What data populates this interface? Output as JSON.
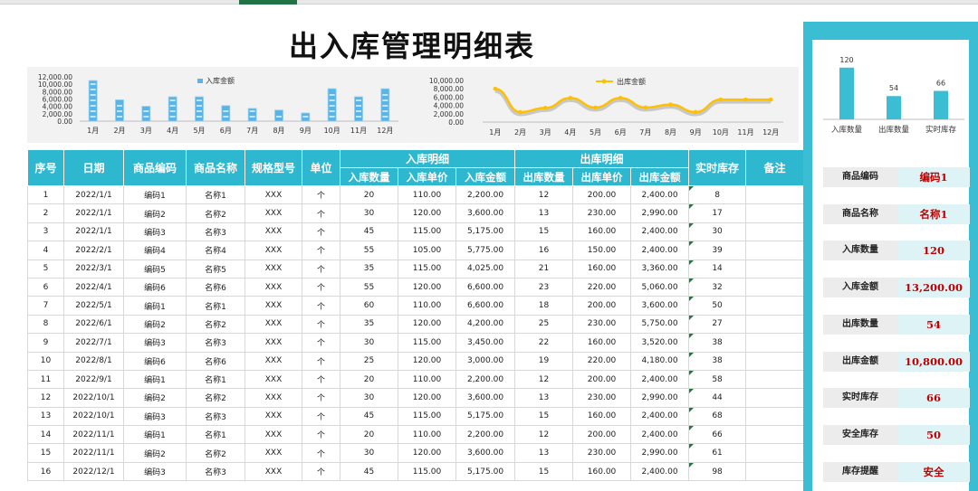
{
  "title": "出入库管理明细表",
  "colors": {
    "header_bg": "#2eb8d0",
    "panel_bg": "#3bbdd4",
    "bar_in": "#5ab4e5",
    "line_out": "#ffc000",
    "value_red": "#c00000"
  },
  "chart_in": {
    "type": "bar",
    "legend": "入库金额",
    "categories": [
      "1月",
      "2月",
      "3月",
      "4月",
      "5月",
      "6月",
      "7月",
      "8月",
      "9月",
      "10月",
      "11月",
      "12月"
    ],
    "yticks": [
      "12,000.00",
      "10,000.00",
      "8,000.00",
      "6,000.00",
      "4,000.00",
      "2,000.00",
      "0.00"
    ],
    "ylim": [
      0,
      12000
    ],
    "values": [
      11000,
      5775,
      4025,
      6600,
      6600,
      4200,
      3450,
      3000,
      2200,
      8800,
      6600,
      8775
    ]
  },
  "chart_out": {
    "type": "line",
    "legend": "出库金额",
    "categories": [
      "1月",
      "2月",
      "3月",
      "4月",
      "5月",
      "6月",
      "7月",
      "8月",
      "9月",
      "10月",
      "11月",
      "12月"
    ],
    "yticks": [
      "10,000.00",
      "8,000.00",
      "6,000.00",
      "4,000.00",
      "2,000.00",
      "0.00"
    ],
    "ylim": [
      0,
      10000
    ],
    "values": [
      8000,
      2400,
      3400,
      5800,
      3500,
      5800,
      3500,
      4200,
      2400,
      5400,
      5400,
      5400
    ]
  },
  "chart_kpi": {
    "type": "bar",
    "categories": [
      "入库数量",
      "出库数量",
      "实时库存"
    ],
    "values": [
      120,
      54,
      66
    ],
    "labels": [
      "120",
      "54",
      "66"
    ],
    "ylim": [
      0,
      130
    ]
  },
  "table": {
    "headers": {
      "seq": "序号",
      "date": "日期",
      "code": "商品编码",
      "name": "商品名称",
      "spec": "规格型号",
      "unit": "单位",
      "in_group": "入库明细",
      "in_qty": "入库数量",
      "in_price": "入库单价",
      "in_amt": "入库金额",
      "out_group": "出库明细",
      "out_qty": "出库数量",
      "out_price": "出库单价",
      "out_amt": "出库金额",
      "stock": "实时库存",
      "note": "备注"
    },
    "rows": [
      [
        "1",
        "2022/1/1",
        "编码1",
        "名称1",
        "XXX",
        "个",
        "20",
        "110.00",
        "2,200.00",
        "12",
        "200.00",
        "2,400.00",
        "8",
        ""
      ],
      [
        "2",
        "2022/1/1",
        "编码2",
        "名称2",
        "XXX",
        "个",
        "30",
        "120.00",
        "3,600.00",
        "13",
        "230.00",
        "2,990.00",
        "17",
        ""
      ],
      [
        "3",
        "2022/1/1",
        "编码3",
        "名称3",
        "XXX",
        "个",
        "45",
        "115.00",
        "5,175.00",
        "15",
        "160.00",
        "2,400.00",
        "30",
        ""
      ],
      [
        "4",
        "2022/2/1",
        "编码4",
        "名称4",
        "XXX",
        "个",
        "55",
        "105.00",
        "5,775.00",
        "16",
        "150.00",
        "2,400.00",
        "39",
        ""
      ],
      [
        "5",
        "2022/3/1",
        "编码5",
        "名称5",
        "XXX",
        "个",
        "35",
        "115.00",
        "4,025.00",
        "21",
        "160.00",
        "3,360.00",
        "14",
        ""
      ],
      [
        "6",
        "2022/4/1",
        "编码6",
        "名称6",
        "XXX",
        "个",
        "55",
        "120.00",
        "6,600.00",
        "23",
        "220.00",
        "5,060.00",
        "32",
        ""
      ],
      [
        "7",
        "2022/5/1",
        "编码1",
        "名称1",
        "XXX",
        "个",
        "60",
        "110.00",
        "6,600.00",
        "18",
        "200.00",
        "3,600.00",
        "50",
        ""
      ],
      [
        "8",
        "2022/6/1",
        "编码2",
        "名称2",
        "XXX",
        "个",
        "35",
        "120.00",
        "4,200.00",
        "25",
        "230.00",
        "5,750.00",
        "27",
        ""
      ],
      [
        "9",
        "2022/7/1",
        "编码3",
        "名称3",
        "XXX",
        "个",
        "30",
        "115.00",
        "3,450.00",
        "22",
        "160.00",
        "3,520.00",
        "38",
        ""
      ],
      [
        "10",
        "2022/8/1",
        "编码6",
        "名称6",
        "XXX",
        "个",
        "25",
        "120.00",
        "3,000.00",
        "19",
        "220.00",
        "4,180.00",
        "38",
        ""
      ],
      [
        "11",
        "2022/9/1",
        "编码1",
        "名称1",
        "XXX",
        "个",
        "20",
        "110.00",
        "2,200.00",
        "12",
        "200.00",
        "2,400.00",
        "58",
        ""
      ],
      [
        "12",
        "2022/10/1",
        "编码2",
        "名称2",
        "XXX",
        "个",
        "30",
        "120.00",
        "3,600.00",
        "13",
        "230.00",
        "2,990.00",
        "44",
        ""
      ],
      [
        "13",
        "2022/10/1",
        "编码3",
        "名称3",
        "XXX",
        "个",
        "45",
        "115.00",
        "5,175.00",
        "15",
        "160.00",
        "2,400.00",
        "68",
        ""
      ],
      [
        "14",
        "2022/11/1",
        "编码1",
        "名称1",
        "XXX",
        "个",
        "20",
        "110.00",
        "2,200.00",
        "12",
        "200.00",
        "2,400.00",
        "66",
        ""
      ],
      [
        "15",
        "2022/11/1",
        "编码2",
        "名称2",
        "XXX",
        "个",
        "30",
        "120.00",
        "3,600.00",
        "13",
        "230.00",
        "2,990.00",
        "61",
        ""
      ],
      [
        "16",
        "2022/12/1",
        "编码3",
        "名称3",
        "XXX",
        "个",
        "45",
        "115.00",
        "5,175.00",
        "15",
        "160.00",
        "2,400.00",
        "98",
        ""
      ]
    ]
  },
  "panel": {
    "items": [
      {
        "label": "商品编码",
        "value": "编码1"
      },
      {
        "label": "商品名称",
        "value": "名称1"
      },
      {
        "label": "入库数量",
        "value": "120"
      },
      {
        "label": "入库金额",
        "value": "13,200.00"
      },
      {
        "label": "出库数量",
        "value": "54"
      },
      {
        "label": "出库金额",
        "value": "10,800.00"
      },
      {
        "label": "实时库存",
        "value": "66"
      },
      {
        "label": "安全库存",
        "value": "50"
      },
      {
        "label": "库存提醒",
        "value": "安全"
      }
    ]
  }
}
